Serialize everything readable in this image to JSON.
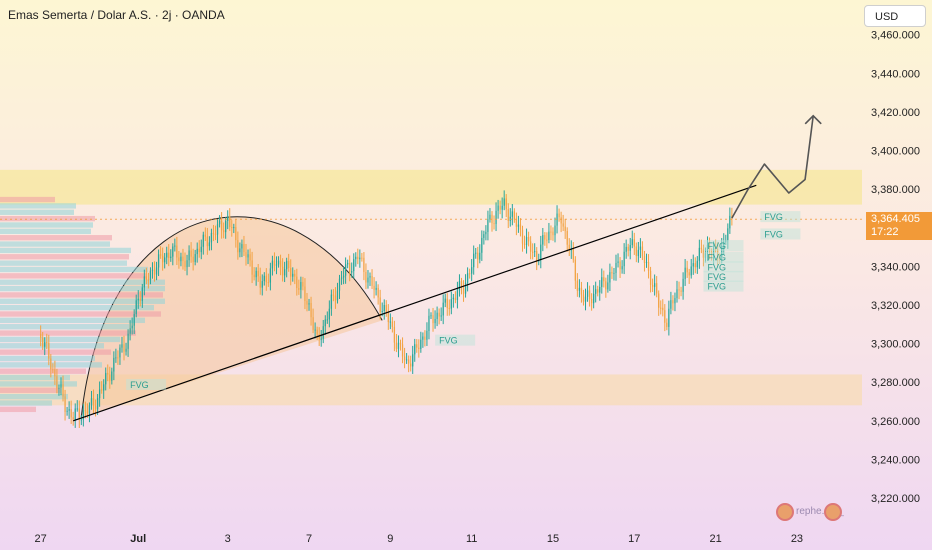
{
  "header": {
    "title": "Emas Semerta / Dolar A.S. · 2j · OANDA"
  },
  "currency_button": {
    "label": "USD"
  },
  "price_tag": {
    "price": "3,364.405",
    "countdown": "17:22"
  },
  "watermark": {
    "text": "rephe...m_"
  },
  "colors": {
    "bull": "#26a69a",
    "bear": "#f2a344",
    "resistance_band": "#f7e7a4",
    "support_band": "#f7dcbc",
    "trendline": "#000000",
    "arrow": "#555555",
    "cup": "#f5c79a",
    "price_tag": "#f29a38"
  },
  "chart_data": {
    "type": "candlestick",
    "title": "Emas Semerta / Dolar A.S. · 2j · OANDA",
    "xlabel": "",
    "ylabel": "",
    "y_axis_ticks": [
      "3,460.000",
      "3,440.000",
      "3,420.000",
      "3,400.000",
      "3,380.000",
      "3,360.000",
      "3,340.000",
      "3,320.000",
      "3,300.000",
      "3,280.000",
      "3,260.000",
      "3,240.000",
      "3,220.000"
    ],
    "y_tick_values": [
      3460,
      3440,
      3420,
      3400,
      3380,
      3360,
      3340,
      3320,
      3300,
      3280,
      3260,
      3240,
      3220
    ],
    "ylim": [
      3206,
      3478
    ],
    "x_axis_ticks": [
      "27",
      "Jul",
      "3",
      "7",
      "9",
      "11",
      "15",
      "17",
      "21",
      "23"
    ],
    "x_tick_index": [
      -6,
      6,
      17,
      27,
      37,
      47,
      57,
      67,
      77,
      87
    ],
    "x_range": [
      -11,
      95
    ],
    "last_price": 3364.405,
    "close_path": [
      [
        -6,
        3305
      ],
      [
        -4,
        3280
      ],
      [
        -3,
        3268
      ],
      [
        -2,
        3262
      ],
      [
        0,
        3266
      ],
      [
        1,
        3272
      ],
      [
        3,
        3290
      ],
      [
        5,
        3305
      ],
      [
        6,
        3325
      ],
      [
        8,
        3340
      ],
      [
        10,
        3348
      ],
      [
        12,
        3342
      ],
      [
        14,
        3352
      ],
      [
        16,
        3360
      ],
      [
        17,
        3364
      ],
      [
        18,
        3354
      ],
      [
        20,
        3340
      ],
      [
        21,
        3330
      ],
      [
        23,
        3342
      ],
      [
        25,
        3336
      ],
      [
        27,
        3320
      ],
      [
        28,
        3300
      ],
      [
        29,
        3312
      ],
      [
        31,
        3335
      ],
      [
        33,
        3345
      ],
      [
        35,
        3328
      ],
      [
        37,
        3310
      ],
      [
        38,
        3298
      ],
      [
        39,
        3290
      ],
      [
        40,
        3295
      ],
      [
        42,
        3312
      ],
      [
        44,
        3320
      ],
      [
        46,
        3330
      ],
      [
        47,
        3340
      ],
      [
        48,
        3350
      ],
      [
        49,
        3362
      ],
      [
        50,
        3368
      ],
      [
        51,
        3372
      ],
      [
        52,
        3365
      ],
      [
        53,
        3358
      ],
      [
        54,
        3350
      ],
      [
        55,
        3345
      ],
      [
        56,
        3354
      ],
      [
        57,
        3360
      ],
      [
        58,
        3365
      ],
      [
        59,
        3350
      ],
      [
        60,
        3330
      ],
      [
        61,
        3322
      ],
      [
        63,
        3330
      ],
      [
        65,
        3340
      ],
      [
        66,
        3348
      ],
      [
        67,
        3352
      ],
      [
        68,
        3345
      ],
      [
        69,
        3335
      ],
      [
        70,
        3320
      ],
      [
        71,
        3312
      ],
      [
        72,
        3325
      ],
      [
        74,
        3340
      ],
      [
        76,
        3350
      ],
      [
        77,
        3345
      ],
      [
        78,
        3352
      ],
      [
        79,
        3365
      ]
    ],
    "bands": [
      {
        "name": "resistance",
        "from": 3372,
        "to": 3390,
        "color": "#f7e7a4"
      },
      {
        "name": "support",
        "from": 3268,
        "to": 3284,
        "color": "#f7dcbc"
      }
    ],
    "trendline": [
      [
        -2,
        3260
      ],
      [
        82,
        3382
      ]
    ],
    "cup": {
      "x_start": -1,
      "x_end": 36,
      "y_base": 3262,
      "y_top": 3366
    },
    "arrow_path": [
      [
        79,
        3365
      ],
      [
        81,
        3380
      ],
      [
        83,
        3393
      ],
      [
        86,
        3378
      ],
      [
        88,
        3385
      ],
      [
        89,
        3418
      ]
    ],
    "fvg_labels": [
      {
        "label": "FVG",
        "x": 5,
        "y": 3278
      },
      {
        "label": "FVG",
        "x": 43,
        "y": 3301
      },
      {
        "label": "FVG",
        "x": 83,
        "y": 3365
      },
      {
        "label": "FVG",
        "x": 83,
        "y": 3356
      },
      {
        "label": "FVG",
        "x": 76,
        "y": 3350
      },
      {
        "label": "FVG",
        "x": 76,
        "y": 3344
      },
      {
        "label": "FVG",
        "x": 76,
        "y": 3339
      },
      {
        "label": "FVG",
        "x": 76,
        "y": 3334
      },
      {
        "label": "FVG",
        "x": 76,
        "y": 3329
      }
    ]
  }
}
